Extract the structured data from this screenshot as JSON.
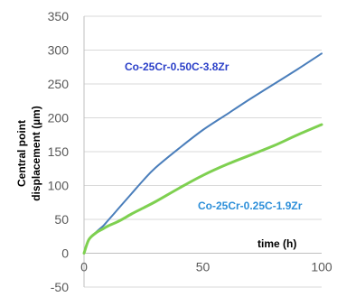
{
  "chart_data": {
    "type": "line",
    "title": "",
    "xlabel": "time (h)",
    "ylabel": [
      "Central point",
      "displacement (µm)"
    ],
    "xlim": [
      0,
      100
    ],
    "ylim": [
      -50,
      350
    ],
    "x_ticks": [
      "0",
      "50",
      "100"
    ],
    "y_ticks": [
      "-50",
      "0",
      "50",
      "100",
      "150",
      "200",
      "250",
      "300",
      "350"
    ],
    "grid": "horizontal",
    "series": [
      {
        "name": "Co-25Cr-0.50C-3.8Zr",
        "color": "#4a7ebb",
        "x": [
          0,
          2,
          5,
          8,
          10,
          15,
          20,
          25,
          30,
          40,
          50,
          60,
          70,
          80,
          90,
          100
        ],
        "y": [
          0,
          20,
          31,
          40,
          48,
          68,
          88,
          108,
          126,
          155,
          182,
          205,
          228,
          250,
          272,
          295
        ]
      },
      {
        "name": "Co-25Cr-0.25C-1.9Zr",
        "color": "#7ed050",
        "x": [
          0,
          2,
          5,
          8,
          10,
          15,
          20,
          25,
          30,
          40,
          50,
          60,
          70,
          80,
          90,
          100
        ],
        "y": [
          0,
          20,
          30,
          36,
          40,
          48,
          58,
          67,
          76,
          96,
          115,
          131,
          145,
          159,
          175,
          190
        ]
      }
    ],
    "annotations": [
      {
        "text": "Co-25Cr-0.50C-3.8Zr",
        "series": 0,
        "color": "#2a3fc8"
      },
      {
        "text": "Co-25Cr-0.25C-1.9Zr",
        "series": 1,
        "color": "#2d8fd9"
      }
    ]
  }
}
